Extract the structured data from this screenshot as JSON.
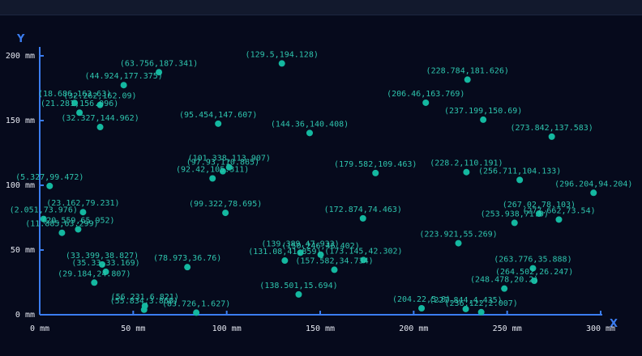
{
  "chart_data": {
    "type": "scatter",
    "title": "",
    "xlabel": "X",
    "ylabel": "Y",
    "unit": "mm",
    "xlim": [
      0,
      300
    ],
    "ylim": [
      0,
      200
    ],
    "xticks": [
      0,
      50,
      100,
      150,
      200,
      250,
      300
    ],
    "yticks": [
      0,
      50,
      100,
      150,
      200
    ],
    "grid": false,
    "point_color": "#14b8a0",
    "axis_color": "#3b7df0",
    "points": [
      {
        "x": 129.5,
        "y": 194.128,
        "label": "(129.5,194.128)"
      },
      {
        "x": 63.756,
        "y": 187.341,
        "label": "(63.756,187.341)"
      },
      {
        "x": 228.784,
        "y": 181.626,
        "label": "(228.784,181.626)"
      },
      {
        "x": 44.924,
        "y": 177.375,
        "label": "(44.924,177.375)"
      },
      {
        "x": 18.686,
        "y": 163.63,
        "label": "(18.686,163.63)"
      },
      {
        "x": 32.262,
        "y": 162.09,
        "label": "(32.262,162.09)"
      },
      {
        "x": 206.46,
        "y": 163.769,
        "label": "(206.46,163.769)"
      },
      {
        "x": 21.281,
        "y": 156.096,
        "label": "(21.281,156.096)"
      },
      {
        "x": 237.199,
        "y": 150.69,
        "label": "(237.199,150.69)"
      },
      {
        "x": 95.454,
        "y": 147.607,
        "label": "(95.454,147.607)"
      },
      {
        "x": 32.327,
        "y": 144.962,
        "label": "(32.327,144.962)"
      },
      {
        "x": 144.36,
        "y": 140.408,
        "label": "(144.36,140.408)"
      },
      {
        "x": 273.842,
        "y": 137.583,
        "label": "(273.842,137.583)"
      },
      {
        "x": 101.338,
        "y": 113.907,
        "label": "(101.338,113.907)"
      },
      {
        "x": 97.93,
        "y": 110.865,
        "label": "(97.93,110.865)"
      },
      {
        "x": 92.42,
        "y": 105.311,
        "label": "(92.42,105.311)"
      },
      {
        "x": 179.582,
        "y": 109.463,
        "label": "(179.582,109.463)"
      },
      {
        "x": 228.2,
        "y": 110.191,
        "label": "(228.2,110.191)"
      },
      {
        "x": 256.711,
        "y": 104.133,
        "label": "(256.711,104.133)"
      },
      {
        "x": 5.327,
        "y": 99.472,
        "label": "(5.327,99.472)"
      },
      {
        "x": 296.204,
        "y": 94.204,
        "label": "(296.204,94.204)"
      },
      {
        "x": 23.162,
        "y": 79.231,
        "label": "(23.162,79.231)"
      },
      {
        "x": 99.322,
        "y": 78.695,
        "label": "(99.322,78.695)"
      },
      {
        "x": 267.02,
        "y": 78.103,
        "label": "(267.02,78.103)"
      },
      {
        "x": 2.051,
        "y": 73.976,
        "label": "(2.051,73.976)"
      },
      {
        "x": 172.874,
        "y": 74.463,
        "label": "(172.874,74.463)"
      },
      {
        "x": 253.938,
        "y": 71.0,
        "label": "(253.938,71.0)"
      },
      {
        "x": 277.662,
        "y": 73.54,
        "label": "(277.662,73.54)"
      },
      {
        "x": 20.559,
        "y": 65.952,
        "label": "(20.559,65.952)"
      },
      {
        "x": 11.885,
        "y": 63.299,
        "label": "(11.885,63.299)"
      },
      {
        "x": 223.921,
        "y": 55.269,
        "label": "(223.921,55.269)"
      },
      {
        "x": 139.389,
        "y": 47.933,
        "label": "(139.389,47.933)"
      },
      {
        "x": 150.246,
        "y": 46.402,
        "label": "(150.246,46.402)"
      },
      {
        "x": 173.145,
        "y": 42.302,
        "label": "(173.145,42.302)"
      },
      {
        "x": 131.08,
        "y": 41.859,
        "label": "(131.08,41.859)"
      },
      {
        "x": 33.399,
        "y": 38.827,
        "label": "(33.399,38.827)"
      },
      {
        "x": 78.973,
        "y": 36.76,
        "label": "(78.973,36.76)"
      },
      {
        "x": 263.776,
        "y": 35.888,
        "label": "(263.776,35.888)"
      },
      {
        "x": 35.33,
        "y": 33.169,
        "label": "(35.33,33.169)"
      },
      {
        "x": 157.582,
        "y": 34.734,
        "label": "(157.582,34.734)"
      },
      {
        "x": 264.502,
        "y": 26.247,
        "label": "(264.502,26.247)"
      },
      {
        "x": 29.184,
        "y": 24.807,
        "label": "(29.184,24.807)"
      },
      {
        "x": 248.478,
        "y": 20.2,
        "label": "(248.478,20.2)"
      },
      {
        "x": 138.501,
        "y": 15.694,
        "label": "(138.501,15.694)"
      },
      {
        "x": 56.231,
        "y": 6.821,
        "label": "(56.231,6.821)"
      },
      {
        "x": 55.834,
        "y": 3.868,
        "label": "(55.834,3.868)"
      },
      {
        "x": 204.22,
        "y": 5.0,
        "label": "(204.22,5.0)"
      },
      {
        "x": 227.844,
        "y": 4.435,
        "label": "(227.844,4.435)"
      },
      {
        "x": 236.122,
        "y": 2.007,
        "label": "(236.122,2.007)"
      },
      {
        "x": 83.726,
        "y": 1.627,
        "label": "(83.726,1.627)"
      }
    ]
  }
}
